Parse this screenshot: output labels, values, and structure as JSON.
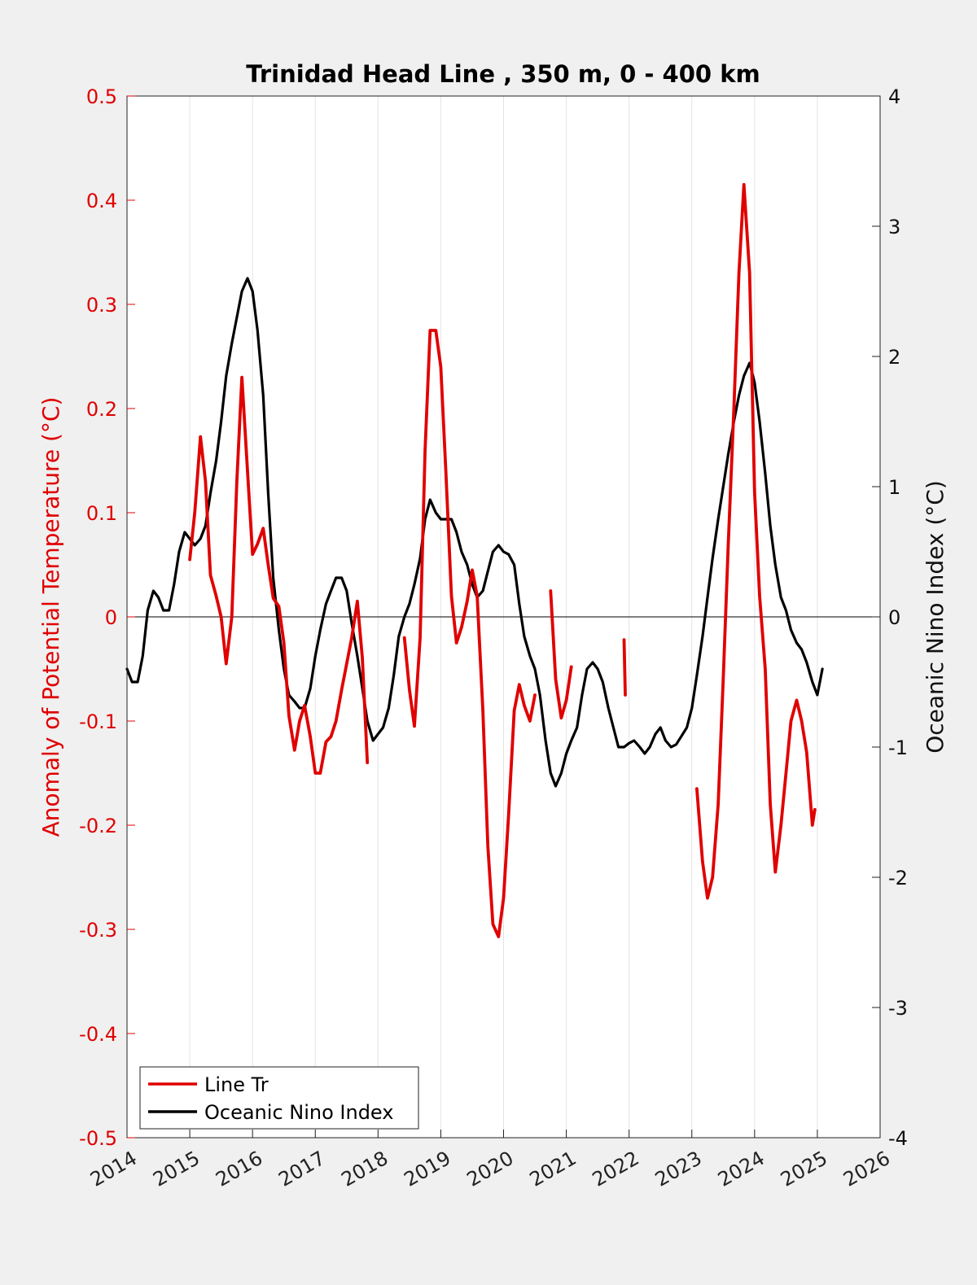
{
  "chart_data": {
    "type": "line",
    "title": "Trinidad Head Line , 350 m, 0 - 400 km",
    "xlabel": "",
    "ylabel_left": "Anomaly of Potential Temperature (°C)",
    "ylabel_right": "Oceanic Nino Index (°C)",
    "xlim": [
      2014,
      2026
    ],
    "ylim_left": [
      -0.5,
      0.5
    ],
    "ylim_right": [
      -4,
      4
    ],
    "x_ticks": [
      "2014",
      "2015",
      "2016",
      "2017",
      "2018",
      "2019",
      "2020",
      "2021",
      "2022",
      "2023",
      "2024",
      "2025",
      "2026"
    ],
    "y_ticks_left": [
      "-0.5",
      "-0.4",
      "-0.3",
      "-0.2",
      "-0.1",
      "0",
      "0.1",
      "0.2",
      "0.3",
      "0.4",
      "0.5"
    ],
    "y_ticks_right": [
      "-4",
      "-3",
      "-2",
      "-1",
      "0",
      "1",
      "2",
      "3",
      "4"
    ],
    "grid": "vertical",
    "legend": {
      "placement": "bottom-left",
      "entries": [
        "Line Tr",
        "Oceanic Nino Index"
      ]
    },
    "colors": {
      "line_tr": "#e00000",
      "oni": "#000000",
      "left_axis": "#e00000",
      "right_axis": "#000000"
    },
    "series": [
      {
        "name": "Line Tr",
        "axis": "left",
        "segments": [
          [
            [
              2015.0,
              0.055
            ],
            [
              2015.08,
              0.1
            ],
            [
              2015.17,
              0.173
            ],
            [
              2015.25,
              0.13
            ],
            [
              2015.33,
              0.04
            ],
            [
              2015.42,
              0.02
            ],
            [
              2015.5,
              0.0
            ],
            [
              2015.58,
              -0.045
            ],
            [
              2015.67,
              0.0
            ],
            [
              2015.75,
              0.13
            ],
            [
              2015.83,
              0.23
            ],
            [
              2015.92,
              0.14
            ],
            [
              2016.0,
              0.06
            ],
            [
              2016.08,
              0.07
            ],
            [
              2016.17,
              0.085
            ],
            [
              2016.25,
              0.05
            ],
            [
              2016.33,
              0.018
            ],
            [
              2016.42,
              0.01
            ],
            [
              2016.5,
              -0.025
            ],
            [
              2016.58,
              -0.095
            ],
            [
              2016.67,
              -0.128
            ],
            [
              2016.75,
              -0.1
            ],
            [
              2016.83,
              -0.085
            ],
            [
              2016.92,
              -0.115
            ],
            [
              2017.0,
              -0.15
            ],
            [
              2017.08,
              -0.15
            ],
            [
              2017.17,
              -0.12
            ],
            [
              2017.25,
              -0.115
            ],
            [
              2017.33,
              -0.1
            ],
            [
              2017.42,
              -0.07
            ],
            [
              2017.5,
              -0.045
            ],
            [
              2017.58,
              -0.02
            ],
            [
              2017.67,
              0.015
            ],
            [
              2017.75,
              -0.04
            ],
            [
              2017.83,
              -0.14
            ]
          ],
          [
            [
              2018.42,
              -0.02
            ],
            [
              2018.5,
              -0.07
            ],
            [
              2018.58,
              -0.105
            ],
            [
              2018.67,
              -0.02
            ],
            [
              2018.75,
              0.16
            ],
            [
              2018.83,
              0.275
            ],
            [
              2018.92,
              0.275
            ],
            [
              2019.0,
              0.24
            ],
            [
              2019.08,
              0.14
            ],
            [
              2019.17,
              0.02
            ],
            [
              2019.25,
              -0.025
            ],
            [
              2019.33,
              -0.01
            ],
            [
              2019.42,
              0.015
            ],
            [
              2019.5,
              0.045
            ],
            [
              2019.58,
              0.02
            ],
            [
              2019.67,
              -0.09
            ],
            [
              2019.75,
              -0.22
            ],
            [
              2019.83,
              -0.295
            ],
            [
              2019.92,
              -0.307
            ],
            [
              2020.0,
              -0.27
            ],
            [
              2020.08,
              -0.19
            ],
            [
              2020.17,
              -0.09
            ],
            [
              2020.25,
              -0.065
            ],
            [
              2020.33,
              -0.085
            ],
            [
              2020.42,
              -0.1
            ],
            [
              2020.5,
              -0.075
            ]
          ],
          [
            [
              2020.75,
              0.025
            ],
            [
              2020.83,
              -0.06
            ],
            [
              2020.92,
              -0.097
            ],
            [
              2021.0,
              -0.08
            ],
            [
              2021.08,
              -0.048
            ]
          ],
          [
            [
              2021.92,
              -0.022
            ],
            [
              2021.94,
              -0.075
            ]
          ],
          [
            [
              2023.08,
              -0.165
            ],
            [
              2023.17,
              -0.235
            ],
            [
              2023.25,
              -0.27
            ],
            [
              2023.33,
              -0.25
            ],
            [
              2023.42,
              -0.18
            ],
            [
              2023.5,
              -0.06
            ],
            [
              2023.58,
              0.07
            ],
            [
              2023.67,
              0.2
            ],
            [
              2023.75,
              0.33
            ],
            [
              2023.83,
              0.415
            ],
            [
              2023.92,
              0.33
            ],
            [
              2024.0,
              0.12
            ],
            [
              2024.08,
              0.02
            ],
            [
              2024.17,
              -0.05
            ],
            [
              2024.25,
              -0.18
            ],
            [
              2024.33,
              -0.245
            ],
            [
              2024.42,
              -0.2
            ],
            [
              2024.5,
              -0.15
            ],
            [
              2024.58,
              -0.1
            ],
            [
              2024.67,
              -0.08
            ],
            [
              2024.75,
              -0.1
            ],
            [
              2024.83,
              -0.13
            ],
            [
              2024.92,
              -0.2
            ],
            [
              2024.96,
              -0.185
            ]
          ]
        ]
      },
      {
        "name": "Oceanic Nino Index",
        "axis": "right",
        "segments": [
          [
            [
              2014.0,
              -0.4
            ],
            [
              2014.08,
              -0.5
            ],
            [
              2014.17,
              -0.5
            ],
            [
              2014.25,
              -0.3
            ],
            [
              2014.33,
              0.05
            ],
            [
              2014.42,
              0.2
            ],
            [
              2014.5,
              0.15
            ],
            [
              2014.58,
              0.05
            ],
            [
              2014.67,
              0.05
            ],
            [
              2014.75,
              0.25
            ],
            [
              2014.83,
              0.5
            ],
            [
              2014.92,
              0.65
            ],
            [
              2015.0,
              0.6
            ],
            [
              2015.08,
              0.55
            ],
            [
              2015.17,
              0.6
            ],
            [
              2015.25,
              0.7
            ],
            [
              2015.33,
              0.95
            ],
            [
              2015.42,
              1.2
            ],
            [
              2015.5,
              1.5
            ],
            [
              2015.58,
              1.85
            ],
            [
              2015.67,
              2.1
            ],
            [
              2015.75,
              2.3
            ],
            [
              2015.83,
              2.5
            ],
            [
              2015.92,
              2.6
            ],
            [
              2016.0,
              2.5
            ],
            [
              2016.08,
              2.2
            ],
            [
              2016.17,
              1.7
            ],
            [
              2016.25,
              0.95
            ],
            [
              2016.33,
              0.3
            ],
            [
              2016.42,
              -0.1
            ],
            [
              2016.5,
              -0.4
            ],
            [
              2016.58,
              -0.6
            ],
            [
              2016.67,
              -0.65
            ],
            [
              2016.75,
              -0.7
            ],
            [
              2016.83,
              -0.7
            ],
            [
              2016.92,
              -0.55
            ],
            [
              2017.0,
              -0.3
            ],
            [
              2017.08,
              -0.1
            ],
            [
              2017.17,
              0.1
            ],
            [
              2017.25,
              0.2
            ],
            [
              2017.33,
              0.3
            ],
            [
              2017.42,
              0.3
            ],
            [
              2017.5,
              0.2
            ],
            [
              2017.58,
              -0.05
            ],
            [
              2017.67,
              -0.3
            ],
            [
              2017.75,
              -0.55
            ],
            [
              2017.83,
              -0.8
            ],
            [
              2017.92,
              -0.95
            ],
            [
              2018.0,
              -0.9
            ],
            [
              2018.08,
              -0.85
            ],
            [
              2018.17,
              -0.7
            ],
            [
              2018.25,
              -0.45
            ],
            [
              2018.33,
              -0.15
            ],
            [
              2018.42,
              0.0
            ],
            [
              2018.5,
              0.1
            ],
            [
              2018.58,
              0.25
            ],
            [
              2018.67,
              0.45
            ],
            [
              2018.75,
              0.75
            ],
            [
              2018.83,
              0.9
            ],
            [
              2018.92,
              0.8
            ],
            [
              2019.0,
              0.75
            ],
            [
              2019.08,
              0.75
            ],
            [
              2019.17,
              0.75
            ],
            [
              2019.25,
              0.65
            ],
            [
              2019.33,
              0.5
            ],
            [
              2019.42,
              0.4
            ],
            [
              2019.5,
              0.25
            ],
            [
              2019.58,
              0.15
            ],
            [
              2019.67,
              0.2
            ],
            [
              2019.75,
              0.35
            ],
            [
              2019.83,
              0.5
            ],
            [
              2019.92,
              0.55
            ],
            [
              2020.0,
              0.5
            ],
            [
              2020.08,
              0.48
            ],
            [
              2020.17,
              0.4
            ],
            [
              2020.25,
              0.1
            ],
            [
              2020.33,
              -0.15
            ],
            [
              2020.42,
              -0.3
            ],
            [
              2020.5,
              -0.4
            ],
            [
              2020.58,
              -0.6
            ],
            [
              2020.67,
              -0.95
            ],
            [
              2020.75,
              -1.2
            ],
            [
              2020.83,
              -1.3
            ],
            [
              2020.92,
              -1.2
            ],
            [
              2021.0,
              -1.05
            ],
            [
              2021.08,
              -0.95
            ],
            [
              2021.17,
              -0.85
            ],
            [
              2021.25,
              -0.6
            ],
            [
              2021.33,
              -0.4
            ],
            [
              2021.42,
              -0.35
            ],
            [
              2021.5,
              -0.4
            ],
            [
              2021.58,
              -0.5
            ],
            [
              2021.67,
              -0.7
            ],
            [
              2021.75,
              -0.85
            ],
            [
              2021.83,
              -1.0
            ],
            [
              2021.92,
              -1.0
            ],
            [
              2022.0,
              -0.97
            ],
            [
              2022.08,
              -0.95
            ],
            [
              2022.17,
              -1.0
            ],
            [
              2022.25,
              -1.05
            ],
            [
              2022.33,
              -1.0
            ],
            [
              2022.42,
              -0.9
            ],
            [
              2022.5,
              -0.85
            ],
            [
              2022.58,
              -0.95
            ],
            [
              2022.67,
              -1.0
            ],
            [
              2022.75,
              -0.98
            ],
            [
              2022.83,
              -0.92
            ],
            [
              2022.92,
              -0.85
            ],
            [
              2023.0,
              -0.7
            ],
            [
              2023.08,
              -0.45
            ],
            [
              2023.17,
              -0.15
            ],
            [
              2023.25,
              0.15
            ],
            [
              2023.33,
              0.45
            ],
            [
              2023.42,
              0.75
            ],
            [
              2023.5,
              1.0
            ],
            [
              2023.58,
              1.25
            ],
            [
              2023.67,
              1.5
            ],
            [
              2023.75,
              1.7
            ],
            [
              2023.83,
              1.85
            ],
            [
              2023.92,
              1.95
            ],
            [
              2024.0,
              1.8
            ],
            [
              2024.08,
              1.5
            ],
            [
              2024.17,
              1.1
            ],
            [
              2024.25,
              0.7
            ],
            [
              2024.33,
              0.4
            ],
            [
              2024.42,
              0.15
            ],
            [
              2024.5,
              0.05
            ],
            [
              2024.58,
              -0.1
            ],
            [
              2024.67,
              -0.2
            ],
            [
              2024.75,
              -0.25
            ],
            [
              2024.83,
              -0.35
            ],
            [
              2024.92,
              -0.5
            ],
            [
              2025.0,
              -0.6
            ],
            [
              2025.08,
              -0.4
            ]
          ]
        ]
      }
    ]
  }
}
